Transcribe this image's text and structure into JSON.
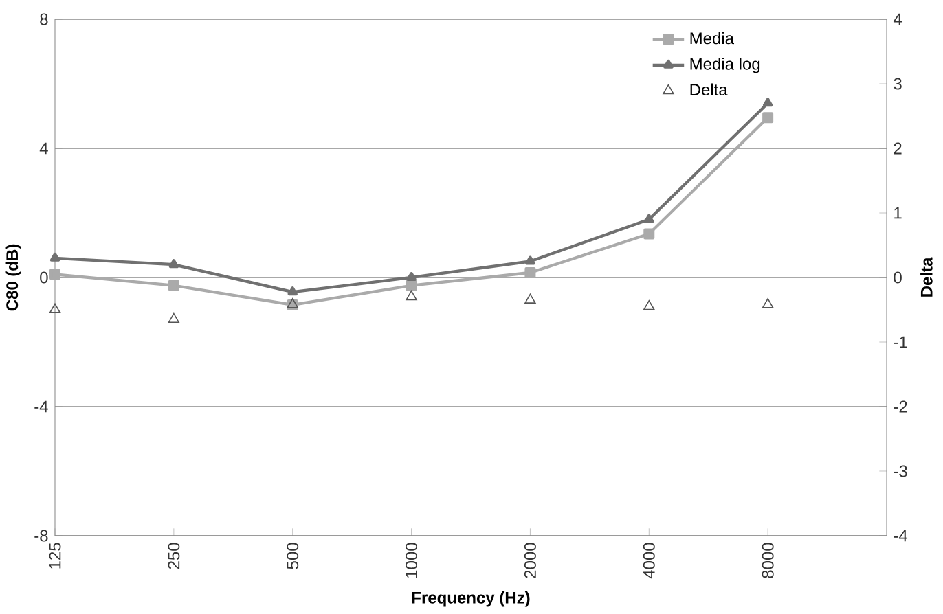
{
  "chart_data": {
    "type": "line",
    "xlabel": "Frequency (Hz)",
    "ylabel": "C80 (dB)",
    "y2label": "Delta",
    "categories": [
      "125",
      "250",
      "500",
      "1000",
      "2000",
      "4000",
      "8000"
    ],
    "series": [
      {
        "name": "Media",
        "marker": "square",
        "color": "#aaaaaa",
        "values": [
          0.1,
          -0.25,
          -0.85,
          -0.25,
          0.15,
          1.35,
          4.95
        ]
      },
      {
        "name": "Media log",
        "marker": "triangle",
        "color": "#707070",
        "values": [
          0.6,
          0.4,
          -0.45,
          0.0,
          0.5,
          1.8,
          5.4
        ]
      },
      {
        "name": "Delta",
        "type": "scatter",
        "marker": "triangle",
        "axis": "y2",
        "color": "#555555",
        "values": [
          -0.5,
          -0.65,
          -0.42,
          -0.3,
          -0.35,
          -0.45,
          -0.42
        ]
      }
    ],
    "ylim": [
      -8,
      8
    ],
    "yticks": [
      -8,
      -4,
      0,
      4,
      8
    ],
    "y2lim": [
      -4,
      4
    ],
    "y2ticks": [
      -4,
      -3,
      -2,
      -1,
      0,
      1,
      2,
      3,
      4
    ],
    "grid": "y",
    "legend": "top right"
  }
}
